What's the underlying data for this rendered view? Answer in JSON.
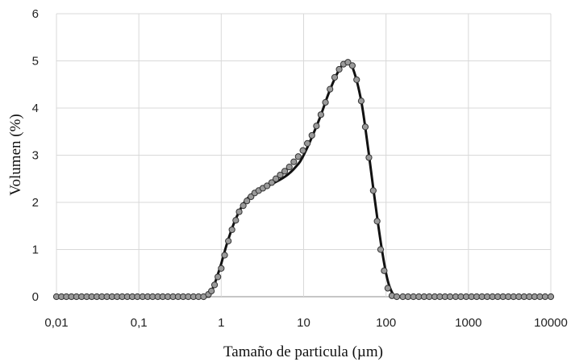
{
  "chart_data": {
    "type": "scatter",
    "title": "",
    "xlabel": "Tamaño de particula (µm)",
    "ylabel": "Volumen (%)",
    "xscale": "log",
    "xlim": [
      0.01,
      10000
    ],
    "ylim": [
      0,
      6
    ],
    "x_ticks": [
      "0,01",
      "0,1",
      "1",
      "10",
      "100",
      "1000",
      "10000"
    ],
    "y_ticks": [
      "0",
      "1",
      "2",
      "3",
      "4",
      "5",
      "6"
    ],
    "grid": true,
    "legend": "none",
    "colors": {
      "line": "#111111",
      "marker_fill": "#9a9a9a",
      "marker_edge": "#333333",
      "grid": "#d9d9d9"
    },
    "series": [
      {
        "style": "markers",
        "x": [
          0.01,
          0.0115,
          0.0132,
          0.0152,
          0.0175,
          0.0202,
          0.0233,
          0.0268,
          0.0309,
          0.0356,
          0.041,
          0.0473,
          0.0545,
          0.0628,
          0.0724,
          0.0834,
          0.096,
          0.111,
          0.128,
          0.147,
          0.17,
          0.195,
          0.225,
          0.26,
          0.3,
          0.345,
          0.398,
          0.46,
          0.53,
          0.61,
          0.7,
          0.76,
          0.83,
          0.91,
          1.0,
          1.1,
          1.22,
          1.35,
          1.5,
          1.65,
          1.85,
          2.05,
          2.3,
          2.55,
          2.85,
          3.2,
          3.6,
          4.1,
          4.6,
          5.2,
          5.9,
          6.7,
          7.6,
          8.6,
          9.8,
          11.1,
          12.6,
          14.3,
          16.2,
          18.4,
          20.9,
          23.8,
          27,
          30.5,
          34.5,
          39,
          44,
          50,
          56,
          62,
          70,
          78,
          86,
          95,
          105,
          118,
          135,
          160,
          185,
          215,
          250,
          290,
          335,
          390,
          450,
          520,
          600,
          700,
          810,
          940,
          1090,
          1260,
          1460,
          1690,
          1960,
          2270,
          2630,
          3050,
          3530,
          4090,
          4740,
          5490,
          6360,
          7370,
          8540,
          10000
        ],
        "y": [
          0,
          0,
          0,
          0,
          0,
          0,
          0,
          0,
          0,
          0,
          0,
          0,
          0,
          0,
          0,
          0,
          0,
          0,
          0,
          0,
          0,
          0,
          0,
          0,
          0,
          0,
          0,
          0,
          0,
          0,
          0.05,
          0.12,
          0.25,
          0.42,
          0.6,
          0.88,
          1.18,
          1.42,
          1.62,
          1.8,
          1.93,
          2.03,
          2.12,
          2.2,
          2.25,
          2.3,
          2.35,
          2.42,
          2.5,
          2.58,
          2.66,
          2.75,
          2.86,
          2.97,
          3.1,
          3.25,
          3.42,
          3.62,
          3.86,
          4.12,
          4.4,
          4.65,
          4.82,
          4.93,
          4.97,
          4.9,
          4.6,
          4.15,
          3.6,
          2.95,
          2.25,
          1.6,
          1.0,
          0.55,
          0.18,
          0.02,
          0,
          0,
          0,
          0,
          0,
          0,
          0,
          0,
          0,
          0,
          0,
          0,
          0,
          0,
          0,
          0,
          0,
          0,
          0,
          0,
          0,
          0,
          0,
          0,
          0,
          0,
          0,
          0,
          0,
          0
        ]
      },
      {
        "style": "line",
        "x": [
          0.01,
          0.1,
          0.6,
          0.7,
          0.8,
          0.9,
          1.0,
          1.2,
          1.5,
          2.0,
          3.0,
          4.0,
          6.0,
          8.0,
          10.0,
          15,
          20,
          25,
          30,
          34,
          40,
          50,
          60,
          70,
          80,
          90,
          100,
          110,
          125,
          150,
          1000,
          10000
        ],
        "y": [
          0,
          0,
          0,
          0.03,
          0.2,
          0.45,
          0.7,
          1.18,
          1.65,
          2.05,
          2.3,
          2.38,
          2.55,
          2.75,
          3.0,
          3.7,
          4.3,
          4.7,
          4.93,
          4.97,
          4.82,
          4.15,
          3.2,
          2.3,
          1.55,
          0.95,
          0.5,
          0.22,
          0.03,
          0,
          0,
          0
        ]
      }
    ]
  }
}
